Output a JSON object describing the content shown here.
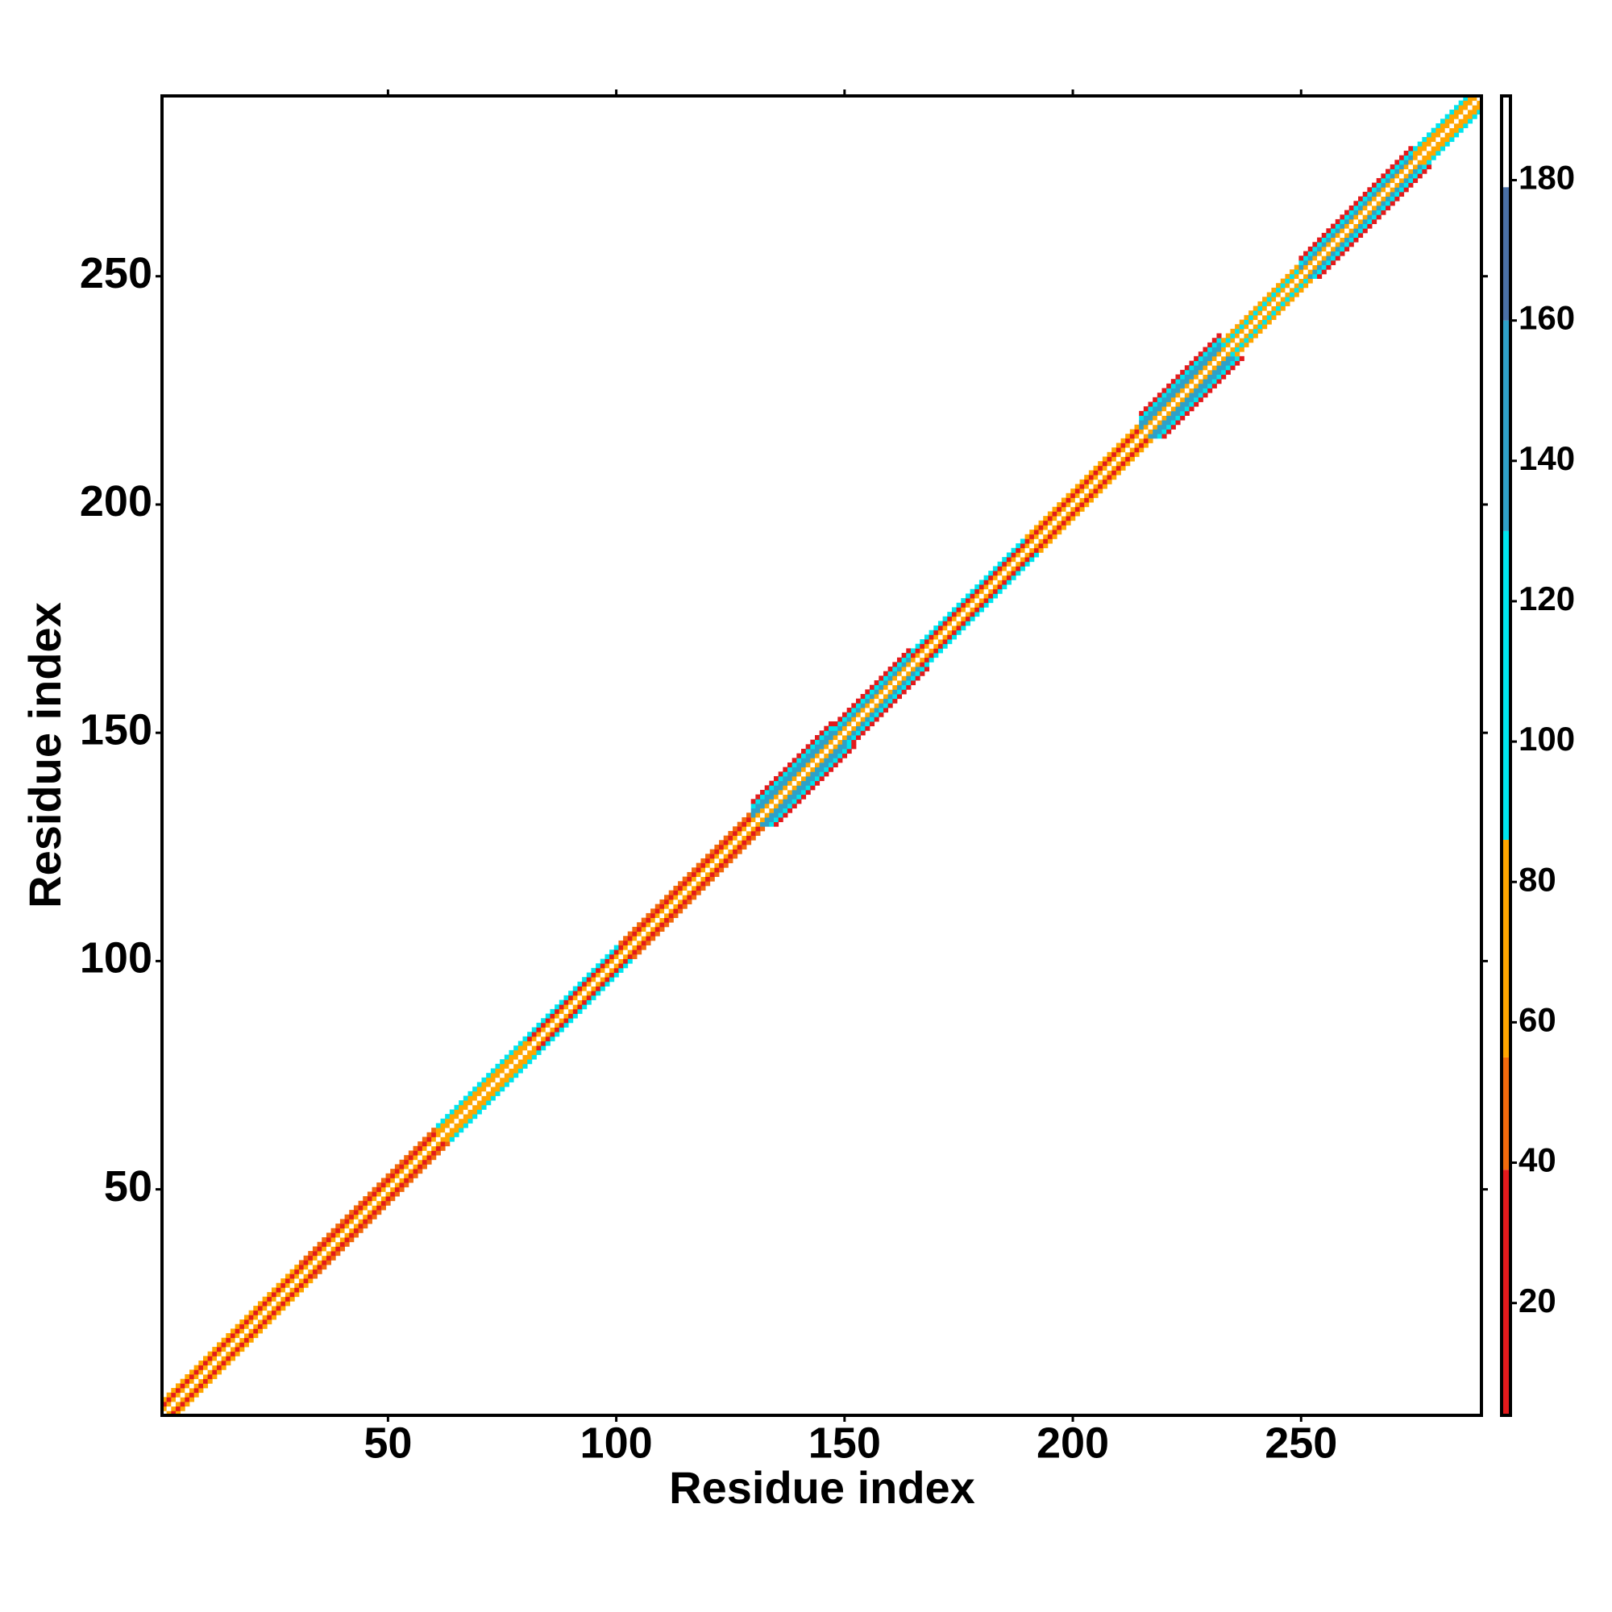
{
  "chart_data": {
    "type": "heatmap",
    "x_label": "Residue index",
    "y_label": "Residue index",
    "xlim": [
      0.5,
      289.5
    ],
    "ylim": [
      0.5,
      289.5
    ],
    "xticks": [
      50,
      100,
      150,
      200,
      250
    ],
    "yticks": [
      50,
      100,
      150,
      200,
      250
    ],
    "segments": [
      {
        "start": 1,
        "end": 30,
        "values": [
          185,
          70,
          30,
          60
        ]
      },
      {
        "start": 31,
        "end": 60,
        "values": [
          185,
          70,
          30,
          45
        ]
      },
      {
        "start": 61,
        "end": 80,
        "values": [
          185,
          70,
          60,
          110
        ]
      },
      {
        "start": 81,
        "end": 100,
        "values": [
          185,
          70,
          30,
          100
        ]
      },
      {
        "start": 101,
        "end": 129,
        "values": [
          185,
          70,
          30,
          50
        ]
      },
      {
        "start": 130,
        "end": 147,
        "values": [
          185,
          70,
          150,
          145,
          110,
          30
        ]
      },
      {
        "start": 148,
        "end": 164,
        "values": [
          185,
          70,
          150,
          110,
          30
        ]
      },
      {
        "start": 165,
        "end": 189,
        "values": [
          185,
          70,
          30,
          110
        ]
      },
      {
        "start": 190,
        "end": 214,
        "values": [
          185,
          70,
          30,
          60
        ]
      },
      {
        "start": 215,
        "end": 232,
        "values": [
          185,
          70,
          150,
          145,
          110,
          30
        ]
      },
      {
        "start": 233,
        "end": 249,
        "values": [
          185,
          70,
          110,
          60
        ]
      },
      {
        "start": 250,
        "end": 274,
        "values": [
          185,
          70,
          150,
          110,
          30
        ]
      },
      {
        "start": 275,
        "end": 289,
        "values": [
          185,
          70,
          60,
          110
        ]
      }
    ],
    "colorbar": {
      "bins": [
        4,
        39,
        55,
        86,
        130,
        160,
        179,
        192
      ],
      "colors": [
        "#e31a1c",
        "#f26a0c",
        "#ffa500",
        "#00e5ee",
        "#2fa0c8",
        "#4a6fa5",
        "#ffffff"
      ],
      "ticks": [
        20,
        40,
        60,
        80,
        100,
        120,
        140,
        160,
        180
      ]
    }
  }
}
